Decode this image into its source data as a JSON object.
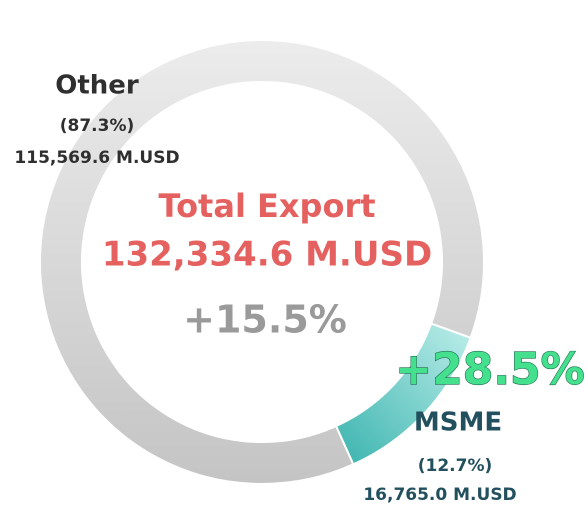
{
  "chart_data": {
    "type": "pie",
    "donut": true,
    "title": "Total Export",
    "subtitle": "132,334.6 M.USD",
    "annotations": [
      "+15.5%",
      "+28.5%"
    ],
    "categories": [
      "Other",
      "MSME"
    ],
    "values": [
      87.3,
      12.7
    ],
    "value_labels": [
      "(87.3%)",
      "(12.7%)"
    ],
    "amount_labels": [
      "115,569.6 M.USD",
      "16,765.0 M.USD"
    ],
    "colors": [
      "#d6d6d6",
      "#55c6c2"
    ]
  }
}
